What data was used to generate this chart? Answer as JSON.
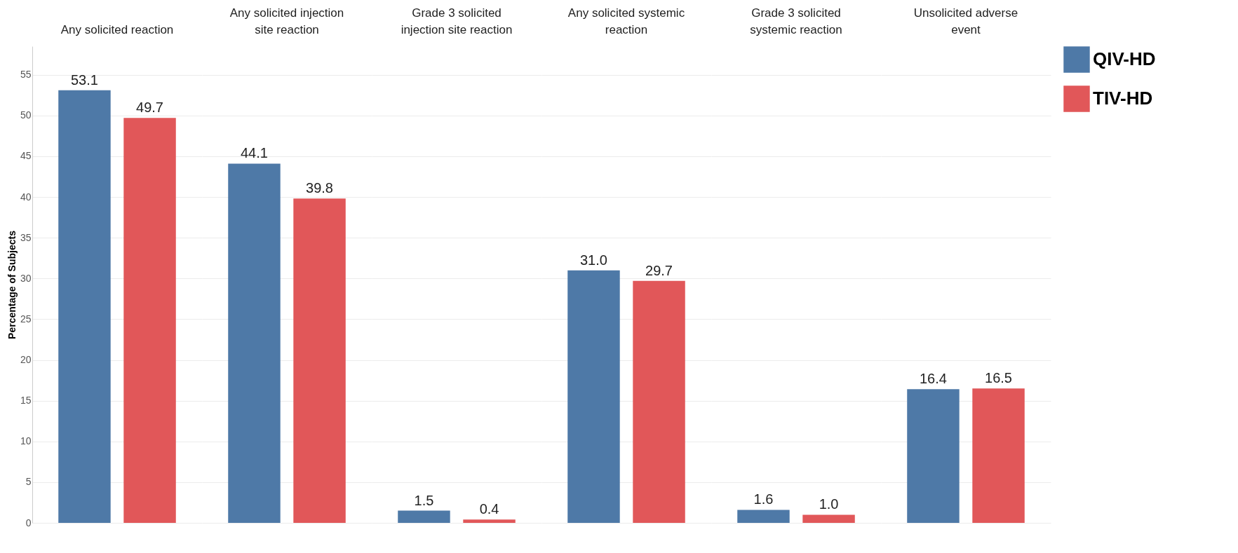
{
  "chart_data": {
    "type": "bar",
    "ylabel": "Percentage of Subjects",
    "categories": [
      "Any solicited reaction",
      "Any solicited injection site reaction",
      "Grade 3 solicited injection site reaction",
      "Any solicited systemic reaction",
      "Grade 3 solicited systemic reaction",
      "Unsolicited adverse event"
    ],
    "series": [
      {
        "name": "QIV-HD",
        "color": "#4e79a7",
        "values": [
          53.1,
          44.1,
          1.5,
          31.0,
          1.6,
          16.4
        ],
        "value_labels": [
          "53.1",
          "44.1",
          "1.5",
          "31.0",
          "1.6",
          "16.4"
        ]
      },
      {
        "name": "TIV-HD",
        "color": "#e15759",
        "values": [
          49.7,
          39.8,
          0.4,
          29.7,
          1.0,
          16.5
        ],
        "value_labels": [
          "49.7",
          "39.8",
          "0.4",
          "29.7",
          "1.0",
          "16.5"
        ]
      }
    ],
    "ylim": [
      0,
      58.5
    ],
    "yticks": [
      0,
      5,
      10,
      15,
      20,
      25,
      30,
      35,
      40,
      45,
      50,
      55
    ],
    "grid": "y",
    "legend": "top right"
  }
}
